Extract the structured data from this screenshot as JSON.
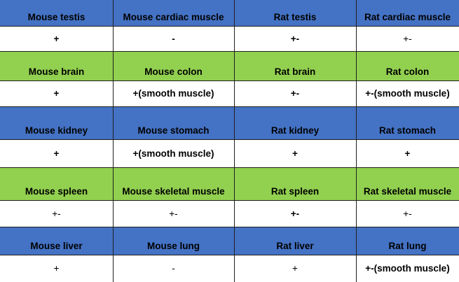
{
  "colors": {
    "blue": "#4472C4",
    "green": "#92D050",
    "white": "#FFFFFF"
  },
  "groups": [
    {
      "band": "blue",
      "headers": [
        "Mouse testis",
        "Mouse cardiac muscle",
        "Rat testis",
        "Rat cardiac muscle"
      ],
      "values": [
        {
          "text": "+",
          "bold": true
        },
        {
          "text": "-",
          "bold": true
        },
        {
          "text": "+-",
          "bold": true
        },
        {
          "text": "+-",
          "bold": false
        }
      ]
    },
    {
      "band": "green",
      "headers": [
        "Mouse brain",
        "Mouse colon",
        "Rat brain",
        "Rat colon"
      ],
      "values": [
        {
          "text": "+",
          "bold": true
        },
        {
          "text": "+(smooth muscle)",
          "bold": true
        },
        {
          "text": "+-",
          "bold": true
        },
        {
          "text": "+-(smooth muscle)",
          "bold": true
        }
      ]
    },
    {
      "band": "blue",
      "headers": [
        "Mouse kidney",
        "Mouse stomach",
        "Rat kidney",
        "Rat stomach"
      ],
      "values": [
        {
          "text": "+",
          "bold": true
        },
        {
          "text": "+(smooth muscle)",
          "bold": true
        },
        {
          "text": "+",
          "bold": true
        },
        {
          "text": "+",
          "bold": true
        }
      ]
    },
    {
      "band": "green",
      "headers": [
        "Mouse spleen",
        "Mouse skeletal muscle",
        "Rat spleen",
        "Rat skeletal muscle"
      ],
      "values": [
        {
          "text": "+-",
          "bold": false
        },
        {
          "text": "+-",
          "bold": false
        },
        {
          "text": "+-",
          "bold": true
        },
        {
          "text": "+-",
          "bold": false
        }
      ]
    },
    {
      "band": "blue",
      "headers": [
        "Mouse liver",
        "Mouse lung",
        "Rat liver",
        "Rat lung"
      ],
      "values": [
        {
          "text": "+",
          "bold": false
        },
        {
          "text": "-",
          "bold": false
        },
        {
          "text": "+",
          "bold": false
        },
        {
          "text": "+-(smooth muscle)",
          "bold": true
        }
      ]
    }
  ]
}
